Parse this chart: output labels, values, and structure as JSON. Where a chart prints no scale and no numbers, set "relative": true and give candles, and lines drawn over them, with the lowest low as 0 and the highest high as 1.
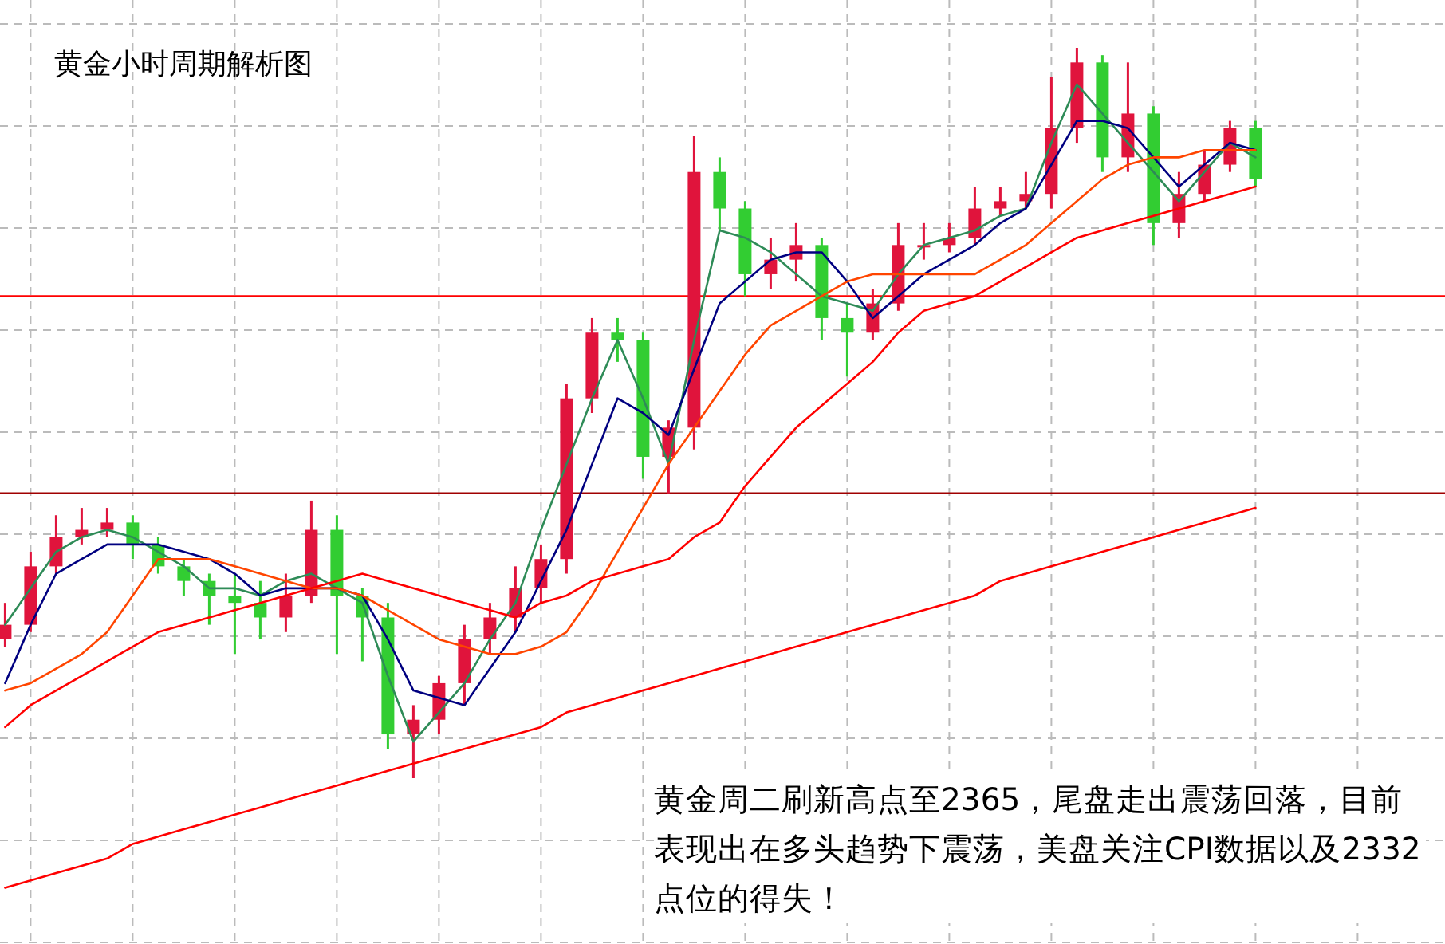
{
  "chart_data": {
    "type": "candlestick",
    "title": "黄金小时周期解析图",
    "relative": true,
    "categories": [
      null,
      null,
      null,
      null,
      null,
      null,
      null,
      null,
      null,
      null,
      null,
      null,
      null,
      null,
      null,
      null,
      null,
      null,
      null,
      null,
      null,
      null,
      null,
      null,
      null,
      null,
      null,
      null,
      null,
      null,
      null,
      null,
      null,
      null,
      null,
      null,
      null,
      null,
      null,
      null,
      null,
      null,
      null,
      null,
      null,
      null,
      null,
      null,
      null,
      null
    ],
    "grid": true,
    "colors": [
      "#e0143c",
      "#e0143c",
      "#e0143c",
      "#e0143c",
      "#e0143c",
      "#32cd32",
      "#32cd32",
      "#32cd32",
      "#32cd32",
      "#32cd32",
      "#32cd32",
      "#e0143c",
      "#e0143c",
      "#32cd32",
      "#32cd32",
      "#32cd32",
      "#e0143c",
      "#e0143c",
      "#e0143c",
      "#e0143c",
      "#e0143c",
      "#e0143c",
      "#e0143c",
      "#e0143c",
      "#32cd32",
      "#32cd32",
      "#e0143c",
      "#e0143c",
      "#32cd32",
      "#32cd32",
      "#e0143c",
      "#e0143c",
      "#32cd32",
      "#32cd32",
      "#e0143c",
      "#e0143c",
      "#e0143c",
      "#e0143c",
      "#e0143c",
      "#e0143c",
      "#e0143c",
      "#e0143c",
      "#e0143c",
      "#32cd32",
      "#e0143c",
      "#32cd32",
      "#e0143c",
      "#e0143c",
      "#e0143c",
      "#32cd32"
    ],
    "ohlc": [
      [
        0.19,
        0.24,
        0.18,
        0.21
      ],
      [
        0.21,
        0.31,
        0.2,
        0.29
      ],
      [
        0.29,
        0.36,
        0.28,
        0.33
      ],
      [
        0.33,
        0.37,
        0.32,
        0.34
      ],
      [
        0.34,
        0.37,
        0.33,
        0.35
      ],
      [
        0.35,
        0.36,
        0.3,
        0.32
      ],
      [
        0.32,
        0.33,
        0.28,
        0.29
      ],
      [
        0.29,
        0.3,
        0.25,
        0.27
      ],
      [
        0.27,
        0.28,
        0.21,
        0.25
      ],
      [
        0.25,
        0.28,
        0.17,
        0.24
      ],
      [
        0.24,
        0.27,
        0.19,
        0.22
      ],
      [
        0.22,
        0.28,
        0.2,
        0.25
      ],
      [
        0.25,
        0.38,
        0.24,
        0.34
      ],
      [
        0.34,
        0.36,
        0.17,
        0.25
      ],
      [
        0.25,
        0.26,
        0.16,
        0.22
      ],
      [
        0.22,
        0.24,
        0.04,
        0.06
      ],
      [
        0.06,
        0.1,
        0.0,
        0.08
      ],
      [
        0.08,
        0.14,
        0.06,
        0.13
      ],
      [
        0.13,
        0.21,
        0.1,
        0.19
      ],
      [
        0.19,
        0.24,
        0.17,
        0.22
      ],
      [
        0.22,
        0.29,
        0.2,
        0.26
      ],
      [
        0.26,
        0.32,
        0.24,
        0.3
      ],
      [
        0.3,
        0.54,
        0.28,
        0.52
      ],
      [
        0.52,
        0.63,
        0.5,
        0.61
      ],
      [
        0.61,
        0.63,
        0.57,
        0.6
      ],
      [
        0.6,
        0.61,
        0.41,
        0.44
      ],
      [
        0.44,
        0.49,
        0.39,
        0.48
      ],
      [
        0.48,
        0.88,
        0.45,
        0.83
      ],
      [
        0.83,
        0.85,
        0.75,
        0.78
      ],
      [
        0.78,
        0.79,
        0.66,
        0.69
      ],
      [
        0.69,
        0.74,
        0.67,
        0.71
      ],
      [
        0.71,
        0.76,
        0.68,
        0.73
      ],
      [
        0.73,
        0.74,
        0.6,
        0.63
      ],
      [
        0.63,
        0.65,
        0.55,
        0.61
      ],
      [
        0.61,
        0.67,
        0.6,
        0.65
      ],
      [
        0.65,
        0.76,
        0.64,
        0.73
      ],
      [
        0.73,
        0.76,
        0.71,
        0.73
      ],
      [
        0.73,
        0.76,
        0.72,
        0.74
      ],
      [
        0.74,
        0.81,
        0.73,
        0.78
      ],
      [
        0.78,
        0.81,
        0.77,
        0.79
      ],
      [
        0.79,
        0.83,
        0.78,
        0.8
      ],
      [
        0.8,
        0.96,
        0.78,
        0.89
      ],
      [
        0.89,
        1.0,
        0.87,
        0.98
      ],
      [
        0.98,
        0.99,
        0.83,
        0.85
      ],
      [
        0.85,
        0.98,
        0.83,
        0.91
      ],
      [
        0.91,
        0.92,
        0.73,
        0.76
      ],
      [
        0.76,
        0.83,
        0.74,
        0.8
      ],
      [
        0.8,
        0.86,
        0.79,
        0.84
      ],
      [
        0.84,
        0.9,
        0.83,
        0.89
      ],
      [
        0.89,
        0.9,
        0.81,
        0.82
      ]
    ],
    "series": [
      {
        "type": "line",
        "color": "#2e8b57",
        "values": [
          0.21,
          0.26,
          0.31,
          0.33,
          0.34,
          0.33,
          0.31,
          0.29,
          0.26,
          0.26,
          0.25,
          0.27,
          0.28,
          0.26,
          0.24,
          0.14,
          0.05,
          0.09,
          0.13,
          0.19,
          0.24,
          0.34,
          0.43,
          0.52,
          0.6,
          0.52,
          0.43,
          0.6,
          0.75,
          0.74,
          0.72,
          0.69,
          0.66,
          0.65,
          0.64,
          0.69,
          0.73,
          0.74,
          0.75,
          0.77,
          0.78,
          0.87,
          0.95,
          0.91,
          0.87,
          0.83,
          0.79,
          0.83,
          0.87,
          0.85
        ]
      },
      {
        "type": "line",
        "color": "#000080",
        "values": [
          0.13,
          0.21,
          0.28,
          0.3,
          0.32,
          0.32,
          0.32,
          0.31,
          0.3,
          0.28,
          0.25,
          0.26,
          0.26,
          0.26,
          0.25,
          0.19,
          0.12,
          0.11,
          0.1,
          0.15,
          0.2,
          0.27,
          0.34,
          0.43,
          0.52,
          0.5,
          0.47,
          0.56,
          0.65,
          0.68,
          0.71,
          0.72,
          0.72,
          0.68,
          0.63,
          0.66,
          0.69,
          0.71,
          0.73,
          0.76,
          0.78,
          0.84,
          0.9,
          0.9,
          0.89,
          0.85,
          0.81,
          0.84,
          0.87,
          0.86
        ]
      },
      {
        "type": "line",
        "color": "#ff4500",
        "values": [
          0.12,
          0.13,
          0.15,
          0.17,
          0.2,
          0.25,
          0.3,
          0.3,
          0.3,
          0.29,
          0.28,
          0.27,
          0.26,
          0.26,
          0.25,
          0.23,
          0.21,
          0.19,
          0.18,
          0.17,
          0.17,
          0.18,
          0.2,
          0.25,
          0.31,
          0.37,
          0.43,
          0.48,
          0.53,
          0.58,
          0.62,
          0.64,
          0.66,
          0.68,
          0.69,
          0.69,
          0.69,
          0.69,
          0.69,
          0.71,
          0.73,
          0.76,
          0.79,
          0.82,
          0.84,
          0.85,
          0.85,
          0.86,
          0.86,
          0.86
        ]
      },
      {
        "type": "line",
        "color": "#ff0000",
        "values": [
          0.07,
          0.1,
          0.12,
          0.14,
          0.16,
          0.18,
          0.2,
          0.21,
          0.22,
          0.23,
          0.24,
          0.25,
          0.26,
          0.27,
          0.28,
          0.27,
          0.26,
          0.25,
          0.24,
          0.23,
          0.22,
          0.24,
          0.25,
          0.27,
          0.28,
          0.29,
          0.3,
          0.33,
          0.35,
          0.4,
          0.44,
          0.48,
          0.51,
          0.54,
          0.57,
          0.61,
          0.64,
          0.65,
          0.66,
          0.68,
          0.7,
          0.72,
          0.74,
          0.75,
          0.76,
          0.77,
          0.78,
          0.79,
          0.8,
          0.81
        ]
      },
      {
        "type": "line",
        "color": "#ff0000",
        "values": [
          -0.15,
          -0.14,
          -0.13,
          -0.12,
          -0.11,
          -0.09,
          -0.08,
          -0.07,
          -0.06,
          -0.05,
          -0.04,
          -0.03,
          -0.02,
          -0.01,
          0.0,
          0.01,
          0.02,
          0.03,
          0.04,
          0.05,
          0.06,
          0.07,
          0.09,
          0.1,
          0.11,
          0.12,
          0.13,
          0.14,
          0.15,
          0.16,
          0.17,
          0.18,
          0.19,
          0.2,
          0.21,
          0.22,
          0.23,
          0.24,
          0.25,
          0.27,
          0.28,
          0.29,
          0.3,
          0.31,
          0.32,
          0.33,
          0.34,
          0.35,
          0.36,
          0.37
        ]
      }
    ],
    "ref_lines": [
      {
        "axis": "y",
        "value": 0.66,
        "color": "#ff0000"
      },
      {
        "axis": "y",
        "value": 0.39,
        "color": "#a00000"
      }
    ],
    "annotations": [
      "黄金周二刷新高点至2365，尾盘走出震荡回落，目前表现出在多头趋势下震荡，美盘关注CPI数据以及2332点位的得失！"
    ]
  }
}
